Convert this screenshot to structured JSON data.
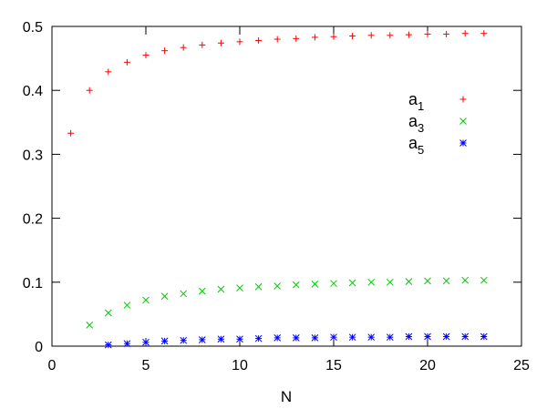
{
  "chart_data": {
    "type": "scatter",
    "title": "",
    "xlabel": "N",
    "ylabel": "",
    "xlim": [
      0,
      25
    ],
    "ylim": [
      0,
      0.5
    ],
    "x_ticks": [
      0,
      5,
      10,
      15,
      20,
      25
    ],
    "x_tick_labels": [
      "0",
      "5",
      "10",
      "15",
      "20",
      "25"
    ],
    "y_ticks": [
      0,
      0.1,
      0.2,
      0.3,
      0.4,
      0.5
    ],
    "y_tick_labels": [
      "0",
      "0.1",
      "0.2",
      "0.3",
      "0.4",
      "0.5"
    ],
    "grid": false,
    "legend_position": "top-right",
    "series": [
      {
        "name_base": "a",
        "name_sub": "1",
        "color": "#ff0000",
        "marker": "plus",
        "x": [
          1,
          2,
          3,
          4,
          5,
          6,
          7,
          8,
          9,
          10,
          11,
          12,
          13,
          14,
          15,
          16,
          17,
          18,
          19,
          20,
          21,
          22,
          23
        ],
        "y": [
          0.333,
          0.4,
          0.429,
          0.444,
          0.455,
          0.462,
          0.467,
          0.471,
          0.474,
          0.476,
          0.478,
          0.48,
          0.481,
          0.483,
          0.484,
          0.485,
          0.486,
          0.486,
          0.487,
          0.488,
          0.488,
          0.489,
          0.489
        ]
      },
      {
        "name_base": "a",
        "name_sub": "3",
        "color": "#00cc00",
        "marker": "x",
        "x": [
          2,
          3,
          4,
          5,
          6,
          7,
          8,
          9,
          10,
          11,
          12,
          13,
          14,
          15,
          16,
          17,
          18,
          19,
          20,
          21,
          22,
          23
        ],
        "y": [
          0.033,
          0.052,
          0.064,
          0.072,
          0.078,
          0.082,
          0.086,
          0.089,
          0.091,
          0.093,
          0.094,
          0.096,
          0.097,
          0.098,
          0.099,
          0.1,
          0.1,
          0.101,
          0.102,
          0.102,
          0.103,
          0.103
        ]
      },
      {
        "name_base": "a",
        "name_sub": "5",
        "color": "#0000ff",
        "marker": "star",
        "x": [
          3,
          4,
          5,
          6,
          7,
          8,
          9,
          10,
          11,
          12,
          13,
          14,
          15,
          16,
          17,
          18,
          19,
          20,
          21,
          22,
          23
        ],
        "y": [
          0.002,
          0.004,
          0.006,
          0.008,
          0.009,
          0.01,
          0.011,
          0.011,
          0.012,
          0.013,
          0.013,
          0.013,
          0.014,
          0.014,
          0.014,
          0.014,
          0.015,
          0.015,
          0.015,
          0.015,
          0.015
        ]
      }
    ]
  }
}
